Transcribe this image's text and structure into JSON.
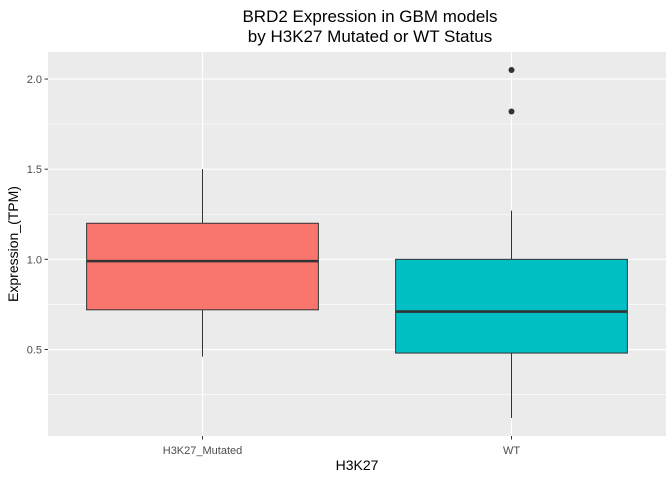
{
  "chart_data": {
    "type": "boxplot",
    "title_lines": [
      "BRD2 Expression in GBM models",
      "by H3K27 Mutated or WT Status"
    ],
    "xlabel": "H3K27",
    "ylabel": "Expression_(TPM)",
    "ylim": [
      0.02,
      2.15
    ],
    "y_ticks": [
      0.5,
      1.0,
      1.5,
      2.0
    ],
    "y_tick_labels": [
      "0.5",
      "1.0",
      "1.5",
      "2.0"
    ],
    "y_minor_ticks": [
      0.25,
      0.75,
      1.25,
      1.75
    ],
    "grid": true,
    "legend": "none",
    "groups": [
      {
        "category": "H3K27_Mutated",
        "color": "#F8766D",
        "whisker_low": 0.46,
        "q1": 0.72,
        "median": 0.99,
        "q3": 1.2,
        "whisker_high": 1.5,
        "outliers": []
      },
      {
        "category": "WT",
        "color": "#00BFC4",
        "whisker_low": 0.12,
        "q1": 0.48,
        "median": 0.71,
        "q3": 1.0,
        "whisker_high": 1.27,
        "outliers": [
          1.82,
          2.05
        ]
      }
    ]
  }
}
